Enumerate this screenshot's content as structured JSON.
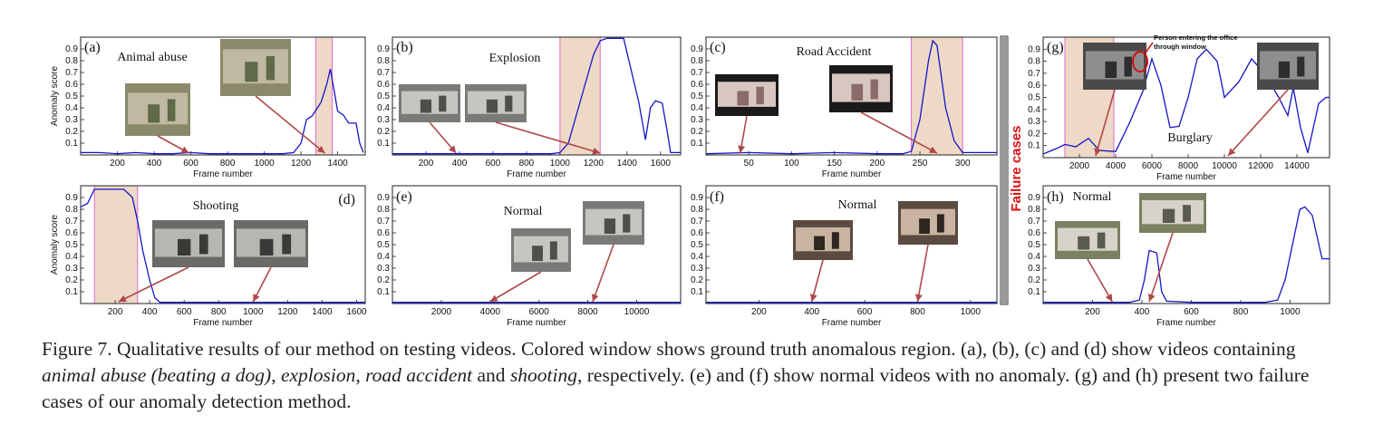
{
  "charts": [
    {
      "id": "a",
      "letter": "(a)",
      "title": "Animal abuse",
      "show_ylabel": true,
      "xlim": [
        0,
        1550
      ],
      "xticks": [
        200,
        400,
        600,
        800,
        1000,
        1200,
        1400
      ],
      "ylim": [
        0,
        1
      ],
      "gt": [
        1280,
        1370
      ],
      "series": [
        [
          0,
          0.02
        ],
        [
          100,
          0.02
        ],
        [
          200,
          0.01
        ],
        [
          300,
          0.02
        ],
        [
          400,
          0.01
        ],
        [
          500,
          0.01
        ],
        [
          600,
          0.02
        ],
        [
          700,
          0.01
        ],
        [
          800,
          0.01
        ],
        [
          900,
          0.01
        ],
        [
          1000,
          0.01
        ],
        [
          1100,
          0.01
        ],
        [
          1160,
          0.02
        ],
        [
          1200,
          0.1
        ],
        [
          1230,
          0.3
        ],
        [
          1260,
          0.33
        ],
        [
          1290,
          0.4
        ],
        [
          1310,
          0.45
        ],
        [
          1340,
          0.6
        ],
        [
          1360,
          0.73
        ],
        [
          1380,
          0.55
        ],
        [
          1400,
          0.37
        ],
        [
          1430,
          0.34
        ],
        [
          1460,
          0.27
        ],
        [
          1500,
          0.27
        ],
        [
          1520,
          0.1
        ],
        [
          1540,
          0.02
        ]
      ],
      "thumbs": [
        {
          "tone": "outdoor",
          "anchor": 590
        },
        {
          "tone": "outdoor",
          "anchor": 1330
        }
      ]
    },
    {
      "id": "b",
      "letter": "(b)",
      "title": "Explosion",
      "show_ylabel": false,
      "xlim": [
        0,
        1720
      ],
      "xticks": [
        200,
        400,
        600,
        800,
        1000,
        1200,
        1400,
        1600
      ],
      "ylim": [
        0,
        1
      ],
      "gt": [
        1000,
        1240
      ],
      "series": [
        [
          0,
          0.01
        ],
        [
          200,
          0.01
        ],
        [
          400,
          0.01
        ],
        [
          600,
          0.01
        ],
        [
          800,
          0.01
        ],
        [
          950,
          0.01
        ],
        [
          1000,
          0.02
        ],
        [
          1050,
          0.1
        ],
        [
          1100,
          0.35
        ],
        [
          1150,
          0.6
        ],
        [
          1200,
          0.85
        ],
        [
          1240,
          0.97
        ],
        [
          1280,
          0.99
        ],
        [
          1380,
          0.99
        ],
        [
          1420,
          0.75
        ],
        [
          1470,
          0.45
        ],
        [
          1510,
          0.13
        ],
        [
          1540,
          0.4
        ],
        [
          1570,
          0.46
        ],
        [
          1610,
          0.44
        ],
        [
          1640,
          0.2
        ],
        [
          1660,
          0.02
        ],
        [
          1720,
          0.02
        ]
      ],
      "thumbs": [
        {
          "tone": "street",
          "anchor": 380
        },
        {
          "tone": "street",
          "anchor": 1240
        }
      ]
    },
    {
      "id": "c",
      "letter": "(c)",
      "title": "Road Accident",
      "show_ylabel": false,
      "xlim": [
        0,
        340
      ],
      "xticks": [
        50,
        100,
        150,
        200,
        250,
        300
      ],
      "ylim": [
        0,
        1
      ],
      "gt": [
        240,
        300
      ],
      "series": [
        [
          0,
          0.01
        ],
        [
          50,
          0.02
        ],
        [
          100,
          0.01
        ],
        [
          150,
          0.02
        ],
        [
          200,
          0.01
        ],
        [
          230,
          0.01
        ],
        [
          240,
          0.03
        ],
        [
          250,
          0.3
        ],
        [
          260,
          0.8
        ],
        [
          265,
          0.97
        ],
        [
          270,
          0.93
        ],
        [
          280,
          0.4
        ],
        [
          290,
          0.12
        ],
        [
          300,
          0.02
        ],
        [
          340,
          0.02
        ]
      ],
      "thumbs": [
        {
          "tone": "crowd",
          "anchor": 40
        },
        {
          "tone": "crowd",
          "anchor": 270
        }
      ]
    },
    {
      "id": "g",
      "letter": "(g)",
      "title": "Burglary",
      "show_ylabel": false,
      "xlim": [
        0,
        15800
      ],
      "xticks": [
        2000,
        4000,
        6000,
        8000,
        10000,
        12000,
        14000
      ],
      "ylim": [
        0,
        1
      ],
      "gt": [
        1200,
        3900
      ],
      "annotation": "Person entering the office through window",
      "series": [
        [
          0,
          0.03
        ],
        [
          800,
          0.08
        ],
        [
          1200,
          0.11
        ],
        [
          1800,
          0.09
        ],
        [
          2500,
          0.16
        ],
        [
          3100,
          0.06
        ],
        [
          4000,
          0.05
        ],
        [
          4800,
          0.3
        ],
        [
          5500,
          0.55
        ],
        [
          6000,
          0.82
        ],
        [
          6500,
          0.6
        ],
        [
          7000,
          0.25
        ],
        [
          7500,
          0.26
        ],
        [
          8000,
          0.5
        ],
        [
          8500,
          0.82
        ],
        [
          9000,
          0.9
        ],
        [
          9600,
          0.8
        ],
        [
          10000,
          0.5
        ],
        [
          10800,
          0.63
        ],
        [
          11500,
          0.82
        ],
        [
          12200,
          0.7
        ],
        [
          13000,
          0.5
        ],
        [
          13500,
          0.35
        ],
        [
          13800,
          0.58
        ],
        [
          14200,
          0.25
        ],
        [
          14600,
          0.04
        ],
        [
          15200,
          0.45
        ],
        [
          15600,
          0.5
        ],
        [
          15800,
          0.5
        ]
      ],
      "thumbs": [
        {
          "tone": "office",
          "anchor": 2900
        },
        {
          "tone": "office",
          "anchor": 10200
        }
      ]
    },
    {
      "id": "d",
      "letter": "(d)",
      "title": "Shooting",
      "show_ylabel": true,
      "xlim": [
        0,
        1650
      ],
      "xticks": [
        200,
        400,
        600,
        800,
        1000,
        1200,
        1400,
        1600
      ],
      "ylim": [
        0,
        1
      ],
      "gt": [
        80,
        330
      ],
      "series": [
        [
          0,
          0.82
        ],
        [
          40,
          0.85
        ],
        [
          80,
          0.97
        ],
        [
          150,
          0.97
        ],
        [
          250,
          0.97
        ],
        [
          300,
          0.9
        ],
        [
          330,
          0.7
        ],
        [
          360,
          0.45
        ],
        [
          400,
          0.2
        ],
        [
          430,
          0.05
        ],
        [
          460,
          0.01
        ],
        [
          600,
          0.01
        ],
        [
          800,
          0.01
        ],
        [
          1000,
          0.01
        ],
        [
          1200,
          0.01
        ],
        [
          1400,
          0.01
        ],
        [
          1650,
          0.01
        ]
      ],
      "thumbs": [
        {
          "tone": "cctv",
          "anchor": 220
        },
        {
          "tone": "cctv",
          "anchor": 1000
        }
      ]
    },
    {
      "id": "e",
      "letter": "(e)",
      "title": "Normal",
      "show_ylabel": false,
      "xlim": [
        0,
        11800
      ],
      "xticks": [
        2000,
        4000,
        6000,
        8000,
        10000
      ],
      "ylim": [
        0,
        1
      ],
      "gt": null,
      "series": [
        [
          0,
          0.01
        ],
        [
          11800,
          0.01
        ]
      ],
      "thumbs": [
        {
          "tone": "street",
          "anchor": 4000
        },
        {
          "tone": "street",
          "anchor": 8200
        }
      ]
    },
    {
      "id": "f",
      "letter": "(f)",
      "title": "Normal",
      "show_ylabel": false,
      "xlim": [
        0,
        1100
      ],
      "xticks": [
        200,
        400,
        600,
        800,
        1000
      ],
      "ylim": [
        0,
        1
      ],
      "gt": null,
      "series": [
        [
          0,
          0.01
        ],
        [
          1100,
          0.01
        ]
      ],
      "thumbs": [
        {
          "tone": "indoor",
          "anchor": 400
        },
        {
          "tone": "indoor",
          "anchor": 800
        }
      ]
    },
    {
      "id": "h",
      "letter": "(h)",
      "title": "Normal",
      "show_ylabel": false,
      "xlim": [
        0,
        1160
      ],
      "xticks": [
        200,
        400,
        600,
        800,
        1000
      ],
      "ylim": [
        0,
        1
      ],
      "gt": null,
      "series": [
        [
          0,
          0.01
        ],
        [
          350,
          0.01
        ],
        [
          390,
          0.03
        ],
        [
          410,
          0.2
        ],
        [
          430,
          0.45
        ],
        [
          460,
          0.43
        ],
        [
          480,
          0.1
        ],
        [
          500,
          0.02
        ],
        [
          600,
          0.01
        ],
        [
          800,
          0.01
        ],
        [
          900,
          0.01
        ],
        [
          950,
          0.03
        ],
        [
          980,
          0.2
        ],
        [
          1010,
          0.5
        ],
        [
          1040,
          0.8
        ],
        [
          1060,
          0.82
        ],
        [
          1090,
          0.75
        ],
        [
          1130,
          0.38
        ],
        [
          1160,
          0.38
        ]
      ],
      "thumbs": [
        {
          "tone": "aerial",
          "anchor": 280
        },
        {
          "tone": "aerial",
          "anchor": 430
        }
      ]
    }
  ],
  "labels": {
    "xlabel": "Frame number",
    "ylabel": "Anomaly score",
    "failure": "Failure cases"
  },
  "colors": {
    "line": "#1515c8",
    "gt_fill": "#edd9c6",
    "gt_edge": "#e06ad0",
    "arrow": "#b04848",
    "failure_text": "#dd1111"
  },
  "caption": {
    "p1": "Figure 7. Qualitative results of our method on testing videos. Colored window shows ground truth anomalous region. (a), (b), (c) and (d) show videos containing ",
    "e1": "animal abuse (beating a dog)",
    "p2": ", ",
    "e2": "explosion",
    "p3": ", ",
    "e3": "road accident",
    "p4": " and ",
    "e4": "shooting",
    "p5": ", respectively. (e) and (f) show normal videos with no anomaly. (g) and (h) present two failure cases of our anomaly detection method."
  }
}
